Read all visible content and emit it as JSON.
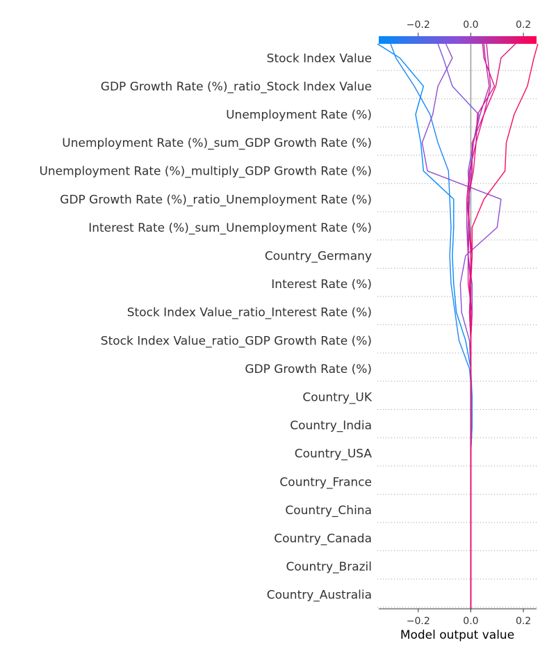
{
  "chart_data": {
    "type": "line",
    "subtype": "shap-decision-plot",
    "xlabel": "Model output value",
    "xlim": [
      -0.35,
      0.25
    ],
    "base_value": 0.0,
    "x_ticks": [
      -0.2,
      0.0,
      0.2
    ],
    "x_tick_labels": [
      "−0.2",
      "0.0",
      "0.2"
    ],
    "colorbar": {
      "range": [
        -0.35,
        0.25
      ],
      "ticks": [
        -0.2,
        0.0,
        0.2
      ],
      "tick_labels": [
        "−0.2",
        "0.0",
        "0.2"
      ],
      "colors": [
        "#008bfb",
        "#8c4fd6",
        "#ff0052"
      ]
    },
    "features": [
      "Stock Index Value",
      "GDP Growth Rate (%)_ratio_Stock Index Value",
      "Unemployment Rate (%)",
      "Unemployment Rate (%)_sum_GDP Growth Rate (%)",
      "Unemployment Rate (%)_multiply_GDP Growth Rate (%)",
      "GDP Growth Rate (%)_ratio_Unemployment Rate (%)",
      "Interest Rate (%)_sum_Unemployment Rate (%)",
      "Country_Germany",
      "Interest Rate (%)",
      "Stock Index Value_ratio_Interest Rate (%)",
      "Stock Index Value_ratio_GDP Growth Rate (%)",
      "GDP Growth Rate (%)",
      "Country_UK",
      "Country_India",
      "Country_USA",
      "Country_France",
      "Country_China",
      "Country_Canada",
      "Country_Brazil",
      "Country_Australia"
    ],
    "series": [
      {
        "values": [
          -0.355,
          -0.27,
          -0.18,
          -0.21,
          -0.19,
          -0.18,
          -0.065,
          -0.065,
          -0.07,
          -0.065,
          -0.055,
          -0.02,
          0.0,
          0.005,
          0.005,
          0.0,
          0.0,
          0.0,
          0.0,
          0.0,
          0.0,
          0.0
        ],
        "color": "#008bfb"
      },
      {
        "values": [
          -0.305,
          -0.285,
          -0.215,
          -0.155,
          -0.125,
          -0.085,
          -0.08,
          -0.075,
          -0.08,
          -0.075,
          -0.06,
          -0.045,
          -0.005,
          0.005,
          0.005,
          0.0,
          0.0,
          0.0,
          0.0,
          0.0,
          0.0,
          0.0
        ],
        "color": "#1f86f5"
      },
      {
        "values": [
          -0.125,
          -0.105,
          -0.07,
          0.03,
          0.01,
          -0.01,
          -0.005,
          -0.01,
          -0.01,
          0.005,
          0.005,
          0.0,
          0.0,
          0.0,
          0.0,
          0.0,
          0.0,
          0.0,
          0.0,
          0.0,
          0.0,
          0.0
        ],
        "color": "#7a55dc"
      },
      {
        "values": [
          -0.095,
          -0.07,
          -0.125,
          -0.145,
          -0.185,
          -0.165,
          0.115,
          0.1,
          -0.02,
          -0.04,
          -0.035,
          -0.005,
          0.0,
          0.0,
          0.0,
          0.0,
          0.0,
          0.0,
          0.0,
          0.0,
          0.0,
          0.0
        ],
        "color": "#8e4cd3"
      },
      {
        "values": [
          0.05,
          0.055,
          0.07,
          0.035,
          0.01,
          0.0,
          -0.015,
          -0.015,
          -0.01,
          0.0,
          -0.005,
          0.0,
          0.0,
          0.0,
          0.0,
          0.0,
          0.0,
          0.0,
          0.0,
          0.0,
          0.0,
          0.0
        ],
        "color": "#b92bb3"
      },
      {
        "values": [
          0.06,
          0.065,
          0.075,
          0.05,
          0.005,
          0.005,
          -0.01,
          -0.005,
          -0.01,
          -0.01,
          0.005,
          0.0,
          0.0,
          0.0,
          0.0,
          0.0,
          0.0,
          0.0,
          0.0,
          0.0,
          0.0,
          0.0
        ],
        "color": "#c8259f"
      },
      {
        "values": [
          0.045,
          0.05,
          0.09,
          0.025,
          0.02,
          -0.005,
          -0.015,
          -0.005,
          0.0,
          0.0,
          -0.005,
          0.0,
          0.0,
          0.0,
          0.0,
          0.0,
          0.0,
          0.0,
          0.0,
          0.0,
          0.0,
          0.0
        ],
        "color": "#d41d8c"
      },
      {
        "values": [
          0.17,
          0.115,
          0.095,
          0.05,
          0.02,
          0.01,
          -0.01,
          -0.005,
          0.005,
          0.0,
          0.0,
          0.0,
          0.0,
          0.0,
          0.0,
          0.0,
          0.0,
          0.0,
          0.0,
          0.0,
          0.0,
          0.0
        ],
        "color": "#e7117a"
      },
      {
        "values": [
          0.255,
          0.24,
          0.215,
          0.165,
          0.135,
          0.13,
          0.05,
          0.005,
          0.005,
          -0.005,
          0.0,
          0.0,
          0.0,
          0.0,
          0.0,
          0.0,
          0.0,
          0.0,
          0.0,
          0.0,
          0.0,
          0.0
        ],
        "color": "#f50a62"
      }
    ]
  }
}
